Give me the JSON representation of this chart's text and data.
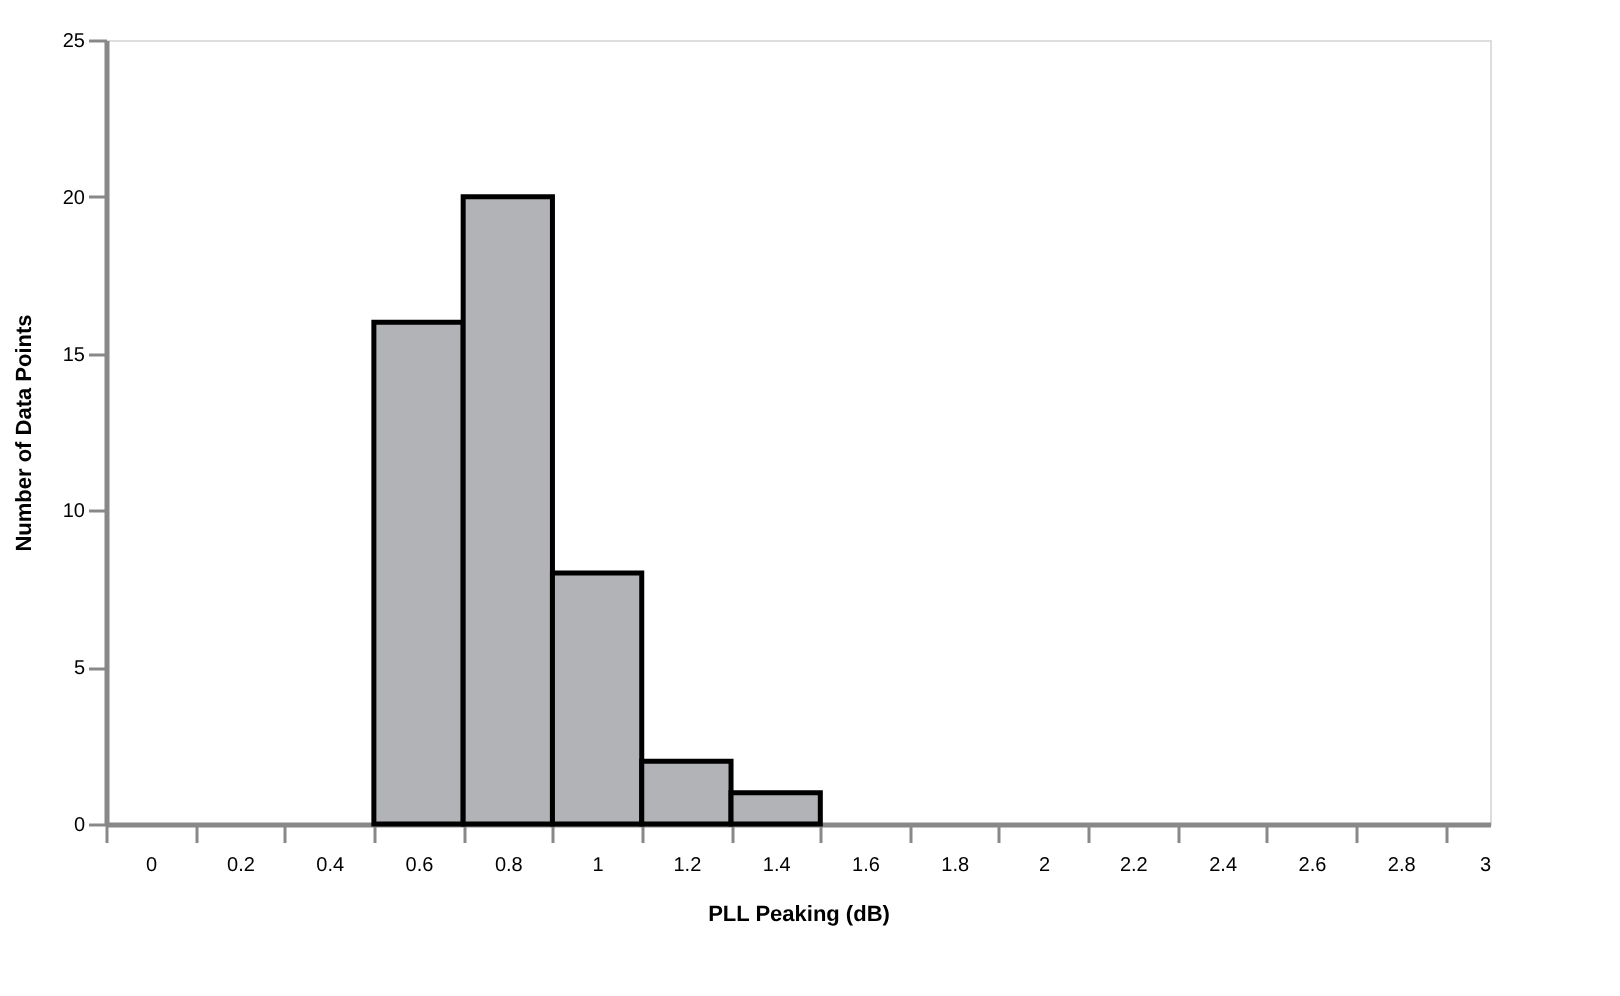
{
  "chart_data": {
    "type": "histogram",
    "xlabel": "PLL Peaking (dB)",
    "ylabel": "Number of Data Points",
    "bins": [
      0.5,
      0.7,
      0.9,
      1.1,
      1.3,
      1.5
    ],
    "values": [
      16,
      20,
      8,
      2,
      1
    ],
    "color": "#b1b3b6",
    "xlim": [
      -0.1,
      3.0
    ],
    "ylim": [
      0,
      25
    ],
    "yticks": [
      0,
      5,
      10,
      15,
      20,
      25
    ],
    "xticks": [
      {
        "value": -0.1,
        "label": null
      },
      0,
      {
        "value": 0.1,
        "label": null
      },
      0.2,
      {
        "value": 0.3,
        "label": null
      },
      0.4,
      {
        "value": 0.5,
        "label": null
      },
      0.6,
      {
        "value": 0.7,
        "label": null
      },
      0.8,
      {
        "value": 0.9,
        "label": null
      },
      1,
      {
        "value": 1.1,
        "label": null
      },
      1.2,
      {
        "value": 1.3,
        "label": null
      },
      1.4,
      {
        "value": 1.5,
        "label": null
      },
      1.6,
      {
        "value": 1.7,
        "label": null
      },
      1.8,
      {
        "value": 1.9,
        "label": null
      },
      2,
      {
        "value": 2.1,
        "label": null
      },
      2.2,
      {
        "value": 2.3,
        "label": null
      },
      2.4,
      {
        "value": 2.5,
        "label": null
      },
      2.6,
      {
        "value": 2.7,
        "label": null
      },
      2.8,
      {
        "value": 2.9,
        "label": null
      },
      3
    ],
    "grid": false
  }
}
